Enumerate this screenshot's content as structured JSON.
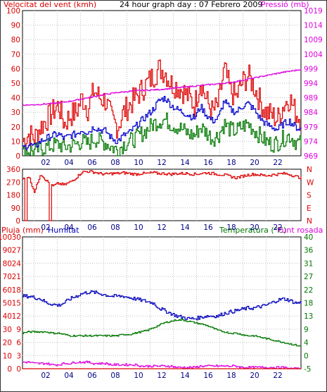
{
  "header": {
    "wind_label": "Velocitat del vent (kmh)",
    "title": "24 hour graph day : 07 Febrero 2009",
    "pressure_label": "Pressió (mb)"
  },
  "colors": {
    "wind_speed": "#dd0000",
    "wind_gust_avg": "#0000cc",
    "wind_low": "#007700",
    "pressure": "#dd00dd",
    "humidity": "#0000bb",
    "temperature": "#007700",
    "dewpoint": "#dd00dd",
    "rain": "#dd0000",
    "grid": "#c0c0c0",
    "axis_left": "#dd0000",
    "axis_green": "#007700"
  },
  "panel3_labels": {
    "rain": "Pluja (mm)",
    "humidity": "Humitat",
    "temperature": "Temperatura (°C)",
    "dewpoint": "Punt rosada"
  },
  "chart_data": [
    {
      "type": "line",
      "x_ticks": [
        "02",
        "04",
        "06",
        "08",
        "10",
        "12",
        "14",
        "16",
        "18",
        "20",
        "22"
      ],
      "y_left_ticks": [
        "100",
        "90",
        "80",
        "70",
        "60",
        "50",
        "40",
        "30",
        "20",
        "10",
        "0"
      ],
      "y_right_ticks": [
        "1019",
        "1014",
        "1009",
        "1004",
        "999",
        "994",
        "989",
        "984",
        "979",
        "974",
        "969"
      ],
      "ylim": [
        0,
        100
      ],
      "y2lim": [
        969,
        1019
      ],
      "series": [
        {
          "key": "wind_speed",
          "values": [
            10,
            15,
            12,
            20,
            25,
            30,
            35,
            22,
            28,
            30,
            40,
            32,
            45,
            40,
            38,
            25,
            20,
            30,
            35,
            40,
            45,
            50,
            55,
            60,
            58,
            50,
            48,
            45,
            40,
            35,
            52,
            38,
            30,
            35,
            60,
            45,
            40,
            50,
            55,
            48,
            38,
            30,
            28,
            25,
            35,
            40,
            30,
            25
          ],
          "spike": 1
        },
        {
          "key": "wind_gust_avg",
          "values": [
            5,
            8,
            6,
            10,
            12,
            14,
            15,
            12,
            14,
            15,
            18,
            16,
            20,
            18,
            17,
            12,
            10,
            14,
            16,
            20,
            24,
            28,
            32,
            38,
            40,
            35,
            32,
            30,
            28,
            26,
            34,
            28,
            24,
            26,
            38,
            32,
            30,
            34,
            36,
            32,
            26,
            22,
            20,
            18,
            22,
            24,
            20,
            18
          ],
          "spike": 0
        },
        {
          "key": "wind_low",
          "values": [
            2,
            4,
            3,
            5,
            6,
            7,
            8,
            6,
            7,
            8,
            10,
            8,
            12,
            10,
            9,
            6,
            4,
            8,
            10,
            12,
            15,
            18,
            22,
            24,
            25,
            22,
            20,
            18,
            15,
            14,
            20,
            16,
            12,
            14,
            22,
            18,
            17,
            20,
            22,
            18,
            14,
            10,
            8,
            9,
            12,
            14,
            10,
            8
          ],
          "spike": 0.6
        },
        {
          "key": "pressure",
          "values": [
            986.5,
            986.5,
            986.6,
            986.7,
            986.9,
            987.0,
            987.2,
            987.5,
            987.8,
            988.2,
            988.6,
            989.0,
            989.4,
            989.8,
            990.2,
            990.5,
            990.8,
            991.0,
            991.2,
            991.4,
            991.5,
            991.6,
            991.7,
            991.8,
            992.0,
            992.2,
            992.4,
            992.6,
            992.8,
            993.0,
            993.2,
            993.4,
            993.6,
            993.8,
            994.0,
            994.2,
            994.6,
            995.0,
            995.4,
            995.8,
            996.2,
            996.6,
            997.0,
            997.4,
            997.8,
            998.1,
            998.4,
            998.8
          ],
          "axis": "right"
        }
      ]
    },
    {
      "type": "line",
      "x_ticks": [
        "02",
        "04",
        "06",
        "08",
        "10",
        "12",
        "14",
        "16",
        "18",
        "20",
        "22"
      ],
      "y_left_ticks": [
        "360",
        "270",
        "180",
        "90",
        "0"
      ],
      "y_right_ticks": [
        "N",
        "W",
        "S",
        "E",
        "N"
      ],
      "ylim": [
        0,
        360
      ],
      "series": [
        {
          "key": "wind_direction",
          "values": [
            290,
            310,
            200,
            330,
            280,
            240,
            260,
            250,
            270,
            300,
            340,
            345,
            340,
            330,
            325,
            330,
            330,
            335,
            330,
            325,
            330,
            330,
            335,
            330,
            330,
            325,
            330,
            330,
            330,
            325,
            330,
            335,
            330,
            325,
            320,
            310,
            300,
            310,
            320,
            325,
            320,
            315,
            320,
            325,
            330,
            325,
            310,
            300
          ],
          "dips": [
            [
              0.25,
              0
            ],
            [
              2.35,
              0
            ]
          ]
        }
      ]
    },
    {
      "type": "line",
      "x_ticks": [
        "02",
        "04",
        "06",
        "08",
        "10",
        "12",
        "14",
        "16",
        "18",
        "20",
        "22"
      ],
      "y_left_ticks": [
        "100",
        "90",
        "80",
        "70",
        "60",
        "50",
        "40",
        "30",
        "20",
        "10",
        "0"
      ],
      "y_left2_ticks": [
        "30",
        "27",
        "24",
        "21",
        "18",
        "15",
        "12",
        "9",
        "6",
        "3",
        "0"
      ],
      "y_right_ticks": [
        "40",
        "36",
        "31",
        "27",
        "22",
        "18",
        "13",
        "9",
        "4",
        "0",
        "-5"
      ],
      "ylim": [
        0,
        100
      ],
      "series": [
        {
          "key": "humidity",
          "values": [
            55,
            55,
            54,
            53,
            50,
            49,
            48,
            50,
            53,
            55,
            57,
            58,
            58,
            57,
            56,
            55,
            55,
            55,
            54,
            53,
            52,
            51,
            50,
            46,
            44,
            42,
            40,
            39,
            38,
            38,
            39,
            40,
            40,
            40,
            42,
            43,
            44,
            45,
            46,
            46,
            47,
            48,
            50,
            52,
            53,
            52,
            50,
            50
          ]
        },
        {
          "key": "temperature",
          "values": [
            27,
            28,
            28,
            28,
            28,
            27,
            27,
            26,
            25,
            25,
            25,
            25,
            25,
            25,
            25,
            25,
            25,
            26,
            26,
            27,
            28,
            29,
            31,
            33,
            35,
            36,
            37,
            37,
            36,
            35,
            34,
            33,
            31,
            29,
            28,
            27,
            27,
            26,
            25,
            25,
            24,
            23,
            22,
            21,
            20,
            19,
            18,
            17
          ]
        },
        {
          "key": "dewpoint",
          "values": [
            5,
            5,
            4,
            4,
            4,
            3,
            3,
            4,
            4,
            5,
            5,
            5,
            4,
            4,
            4,
            3,
            3,
            3,
            3,
            3,
            2,
            2,
            2,
            2,
            2,
            2,
            1,
            1,
            1,
            1,
            2,
            2,
            2,
            2,
            2,
            2,
            2,
            1,
            1,
            1,
            1,
            1,
            1,
            1,
            1,
            0,
            0,
            0
          ]
        },
        {
          "key": "rain",
          "values": [
            0,
            0,
            0,
            0,
            0,
            0,
            0,
            0,
            0,
            0,
            0,
            0,
            0,
            0,
            0,
            0,
            0,
            0,
            0,
            0,
            0,
            0,
            0,
            0,
            0,
            0,
            0,
            0,
            0,
            0,
            0,
            0,
            0,
            0,
            0,
            0,
            0,
            0,
            0,
            0,
            0,
            0,
            0,
            0,
            0,
            0,
            0,
            0
          ]
        }
      ]
    }
  ]
}
